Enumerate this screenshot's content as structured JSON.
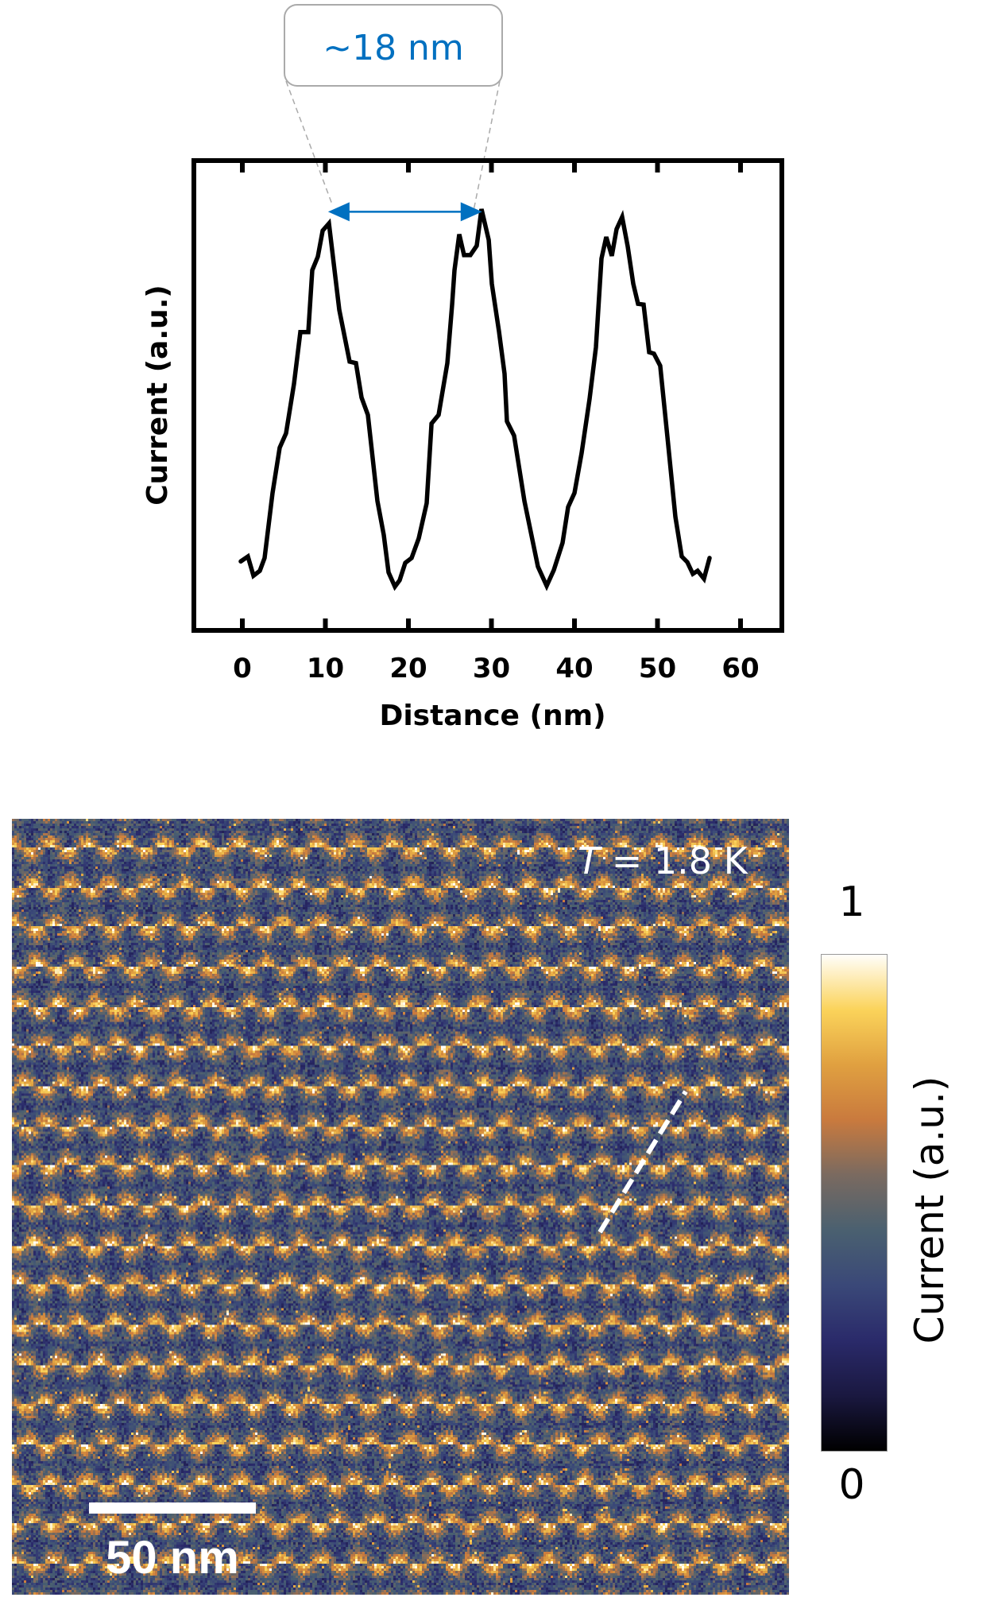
{
  "chart_data": [
    {
      "type": "line",
      "title": "",
      "xlabel": "Distance (nm)",
      "ylabel": "Current (a.u.)",
      "xlim": [
        -6,
        65
      ],
      "ylim": [
        -0.33,
        1.14
      ],
      "xticks": [
        0,
        10,
        20,
        30,
        40,
        50,
        60
      ],
      "xtick_labels": [
        "0",
        "10",
        "20",
        "30",
        "40",
        "50",
        "60"
      ],
      "yticks": [],
      "grid": false,
      "legend": null,
      "series": [
        {
          "name": "line profile",
          "color": "#000000",
          "x": [
            -0.19,
            0.67,
            1.34,
            2.11,
            2.68,
            3.64,
            4.5,
            5.26,
            6.22,
            6.99,
            7.94,
            8.42,
            9.09,
            9.67,
            10.43,
            11.67,
            12.92,
            13.68,
            14.35,
            15.12,
            16.27,
            17.03,
            17.61,
            18.37,
            18.95,
            19.62,
            20.38,
            21.24,
            22.2,
            22.78,
            23.64,
            24.69,
            25.26,
            25.55,
            26.12,
            26.7,
            27.46,
            28.23,
            28.8,
            29.67,
            30.05,
            30.91,
            31.58,
            31.87,
            32.73,
            33.97,
            35.6,
            36.65,
            37.51,
            38.56,
            39.23,
            40.0,
            40.86,
            41.82,
            42.58,
            43.25,
            43.83,
            44.5,
            45.07,
            45.74,
            46.41,
            47.08,
            47.66,
            48.33,
            49.0,
            49.57,
            50.33,
            51.2,
            52.15,
            52.92,
            53.59,
            54.26,
            54.83,
            55.6,
            56.27
          ],
          "y": [
            0.067,
            0.08,
            0.029,
            0.042,
            0.076,
            0.248,
            0.368,
            0.406,
            0.537,
            0.674,
            0.674,
            0.838,
            0.874,
            0.943,
            0.962,
            0.733,
            0.596,
            0.592,
            0.501,
            0.455,
            0.227,
            0.137,
            0.038,
            0.0,
            0.017,
            0.063,
            0.076,
            0.128,
            0.221,
            0.432,
            0.455,
            0.592,
            0.747,
            0.838,
            0.933,
            0.878,
            0.878,
            0.903,
            1.0,
            0.918,
            0.802,
            0.676,
            0.564,
            0.438,
            0.4,
            0.227,
            0.053,
            0.002,
            0.044,
            0.116,
            0.211,
            0.248,
            0.354,
            0.497,
            0.634,
            0.869,
            0.926,
            0.876,
            0.947,
            0.979,
            0.901,
            0.802,
            0.749,
            0.747,
            0.621,
            0.617,
            0.585,
            0.396,
            0.185,
            0.08,
            0.065,
            0.034,
            0.042,
            0.021,
            0.076
          ]
        }
      ],
      "annotations": [
        {
          "type": "double-arrow",
          "text": "~18 nm",
          "color": "#0070C0",
          "x_start": 10.8,
          "x_end": 28.4,
          "y": 0.993
        }
      ]
    },
    {
      "type": "heatmap",
      "title": "",
      "description": "STM current map showing triangular lattice of bright spots",
      "colorbar": {
        "label": "Current (a.u.)",
        "min_label": "0",
        "max_label": "1",
        "range": [
          0,
          1
        ]
      },
      "annotations": [
        {
          "type": "text",
          "text": "T = 1.8 K"
        },
        {
          "type": "scale-bar",
          "text": "50 nm",
          "length_nm": 50
        },
        {
          "type": "dashed-line",
          "color": "#FFFFFF",
          "note": "line-profile path"
        }
      ],
      "lattice_spacing_nm": 18
    }
  ],
  "plot": {
    "x_axis_title": "Distance (nm)",
    "y_axis_title": "Current (a.u.)",
    "callout_text": "~18 nm",
    "callout_color": "#0070C0"
  },
  "image": {
    "temperature_symbol": "T",
    "temperature_value": " = 1.8 K",
    "scale_bar_label": "50 nm",
    "colorbar_title": "Current (a.u.)",
    "colorbar_max": "1",
    "colorbar_min": "0",
    "colormap": [
      "#000000",
      "#1a1840",
      "#2a2a6a",
      "#3a4878",
      "#4a6070",
      "#7a6a60",
      "#c97a3e",
      "#e0a040",
      "#fbd35a",
      "#fffefa"
    ]
  }
}
